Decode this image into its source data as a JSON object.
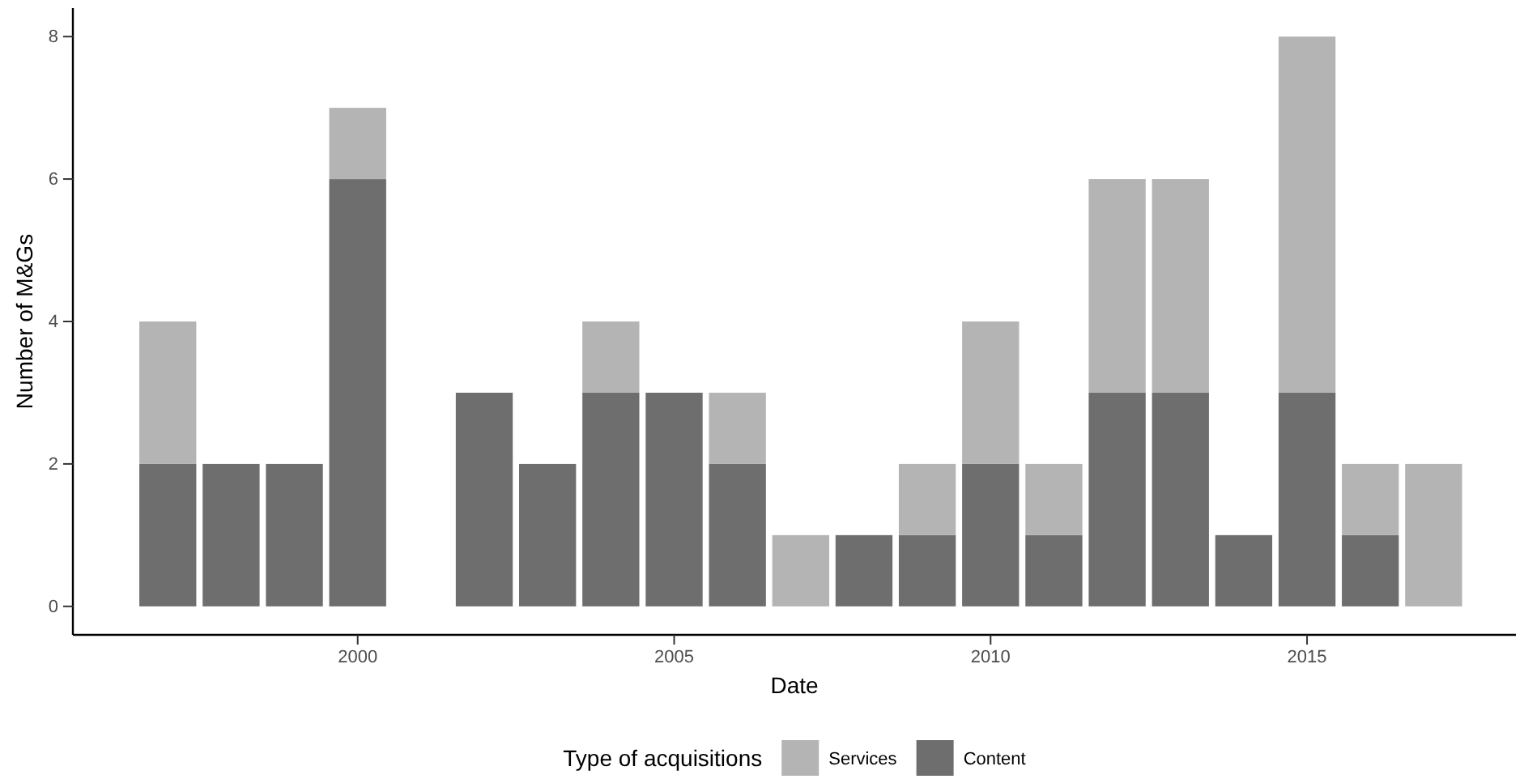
{
  "chart_data": {
    "type": "bar",
    "stacked": true,
    "xlabel": "Date",
    "ylabel": "Number of M&Gs",
    "legend_title": "Type of acquisitions",
    "legend": "bottom",
    "grid": false,
    "x": [
      1997,
      1998,
      1999,
      2000,
      2002,
      2003,
      2004,
      2005,
      2006,
      2007,
      2008,
      2009,
      2010,
      2011,
      2012,
      2013,
      2014,
      2015,
      2016,
      2017
    ],
    "series": [
      {
        "name": "Content",
        "color": "#6e6e6e",
        "values": [
          2,
          2,
          2,
          6,
          3,
          2,
          3,
          3,
          2,
          0,
          1,
          1,
          2,
          1,
          3,
          3,
          1,
          3,
          1,
          0
        ]
      },
      {
        "name": "Services",
        "color": "#b4b4b4",
        "values": [
          2,
          0,
          0,
          1,
          0,
          0,
          1,
          0,
          1,
          1,
          0,
          1,
          2,
          1,
          3,
          3,
          0,
          5,
          1,
          2
        ]
      }
    ],
    "xlim": [
      1995.5,
      2018.3
    ],
    "xticks": [
      2000,
      2005,
      2010,
      2015
    ],
    "ylim": [
      -0.4,
      8.4
    ],
    "yticks": [
      0,
      2,
      4,
      6,
      8
    ]
  }
}
